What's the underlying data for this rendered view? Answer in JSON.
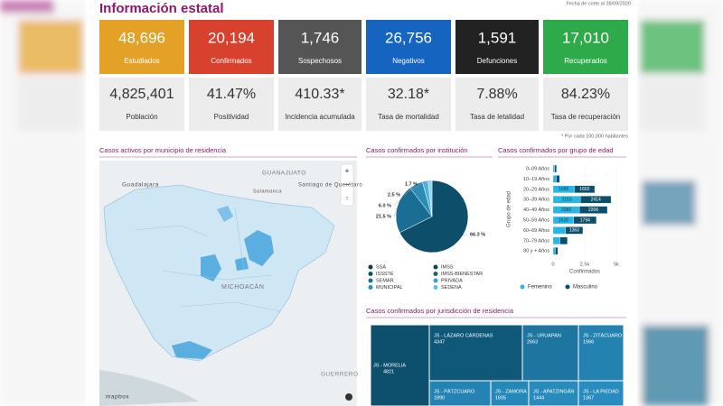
{
  "header": {
    "title": "Información estatal",
    "date": "Fecha de corte al 28/09/2020"
  },
  "kpis": [
    {
      "value": "48,696",
      "label": "Estudiados",
      "color": "#e3a127"
    },
    {
      "value": "20,194",
      "label": "Confirmados",
      "color": "#d9412f"
    },
    {
      "value": "1,746",
      "label": "Sospechosos",
      "color": "#555555"
    },
    {
      "value": "26,756",
      "label": "Negativos",
      "color": "#1565c0"
    },
    {
      "value": "1,591",
      "label": "Defunciones",
      "color": "#222222"
    },
    {
      "value": "17,010",
      "label": "Recuperados",
      "color": "#2eaa4a"
    }
  ],
  "rates": [
    {
      "value": "4,825,401",
      "label": "Población"
    },
    {
      "value": "41.47%",
      "label": "Positividad"
    },
    {
      "value": "410.33*",
      "label": "Incidencia acumulada"
    },
    {
      "value": "32.18*",
      "label": "Tasa de mortalidad"
    },
    {
      "value": "7.88%",
      "label": "Tasa de letalidad"
    },
    {
      "value": "84.23%",
      "label": "Tasa de recuperación"
    }
  ],
  "note": "* Por cada 100,000 habitantes",
  "map": {
    "title": "Casos activos por municipio de residencia",
    "labels": [
      "GUANAJUATO",
      "Guadalajara",
      "Santiago de Querétaro",
      "Salamanca",
      "MICHOACÁN",
      "GUERRERO",
      "mapbox"
    ]
  },
  "institution": {
    "type": "pie",
    "title": "Casos confirmados por institución",
    "values": [
      66.3,
      21.5,
      6.0,
      2.5,
      1.7
    ],
    "value_labels": [
      "66.3 %",
      "21.5 %",
      "6.0 %",
      "2.5 %",
      "1.7 %"
    ],
    "colors": [
      "#0d4f6b",
      "#1a6e93",
      "#2b8cb6",
      "#4fb3d9",
      "#8fd3ee"
    ],
    "legend": [
      {
        "name": "SSA",
        "color": "#0d3b52"
      },
      {
        "name": "ISSSTE",
        "color": "#0d4f6b"
      },
      {
        "name": "SEMAR",
        "color": "#1a6e93"
      },
      {
        "name": "MUNICIPAL",
        "color": "#2b8cb6"
      },
      {
        "name": "IMSS",
        "color": "#0b4460"
      },
      {
        "name": "IMSS-BIENESTAR",
        "color": "#1b5f7e"
      },
      {
        "name": "PRIVADA",
        "color": "#3ea0c9"
      },
      {
        "name": "SEDENA",
        "color": "#4fc3ec"
      }
    ]
  },
  "age": {
    "type": "bar",
    "title": "Casos confirmados por grupo de edad",
    "categories": [
      "0–09 Años",
      "10–19 Años",
      "20–29 Años",
      "30–39 Años",
      "40–49 Años",
      "50–59 Años",
      "60–69 Años",
      "70–79 Años",
      "80 y + Años"
    ],
    "series": [
      {
        "name": "Femenino",
        "color": "#29b6e6",
        "values": [
          130,
          261,
          1686,
          2163,
          2080,
          1628,
          990,
          550,
          176
        ]
      },
      {
        "name": "Masculino",
        "color": "#0d4f6b",
        "values": [
          140,
          250,
          1602,
          2414,
          2206,
          1794,
          1363,
          580,
          200
        ]
      }
    ],
    "xlim": [
      0,
      5000
    ],
    "xticks": [
      0,
      {
        "value": 2500,
        "label": "2.5k"
      },
      {
        "value": 5000,
        "label": "5k"
      }
    ],
    "xlabel": "Confirmados",
    "ylabel": "Grupo de edad"
  },
  "jurisdiction": {
    "type": "treemap",
    "title": "Casos confirmados por jurisdicción de residencia",
    "categories": [
      "JS - MORELIA",
      "JS - LÁZARO CÁRDENAS",
      "JS - URUAPAN",
      "JS - ZITÁCUARO",
      "JS - PÁTZCUARO",
      "JS - ZAMORA",
      "JS - APATZINGÁN",
      "JS - LA PIEDAD"
    ],
    "values": [
      4821,
      4347,
      2663,
      1966,
      1890,
      1605,
      1444,
      1367
    ]
  }
}
